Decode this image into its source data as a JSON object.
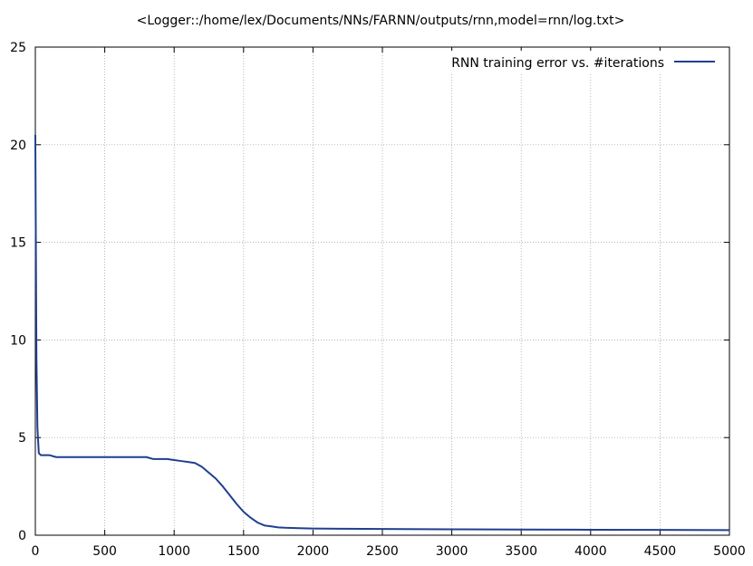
{
  "chart_data": {
    "type": "line",
    "title": "<Logger::/home/lex/Documents/NNs/FARNN/outputs/rnn,model=rnn/log.txt>",
    "xlabel": "",
    "ylabel": "",
    "xlim": [
      0,
      5000
    ],
    "ylim": [
      0,
      25
    ],
    "xticks": [
      0,
      500,
      1000,
      1500,
      2000,
      2500,
      3000,
      3500,
      4000,
      4500,
      5000
    ],
    "yticks": [
      0,
      5,
      10,
      15,
      20,
      25
    ],
    "x_tick_labels": [
      "0",
      "500",
      "1000",
      "1500",
      "2000",
      "2500",
      "3000",
      "3500",
      "4000",
      "4500",
      "5000"
    ],
    "y_tick_labels": [
      "0",
      "5",
      "10",
      "15",
      "20",
      "25"
    ],
    "grid": true,
    "legend_position": "top-right",
    "series": [
      {
        "name": "RNN training error vs. #iterations",
        "color": "#1f3f8f",
        "x": [
          0,
          3,
          8,
          15,
          25,
          40,
          60,
          100,
          150,
          200,
          250,
          300,
          350,
          400,
          450,
          500,
          550,
          600,
          650,
          700,
          750,
          800,
          850,
          900,
          950,
          1000,
          1050,
          1100,
          1150,
          1200,
          1250,
          1300,
          1350,
          1400,
          1450,
          1500,
          1550,
          1600,
          1650,
          1700,
          1750,
          1800,
          1900,
          2000,
          2200,
          2500,
          3000,
          3500,
          4000,
          4500,
          5000
        ],
        "y": [
          20.5,
          16.0,
          9.0,
          5.5,
          4.2,
          4.1,
          4.1,
          4.1,
          4.0,
          4.0,
          4.0,
          4.0,
          4.0,
          4.0,
          4.0,
          4.0,
          4.0,
          4.0,
          4.0,
          4.0,
          4.0,
          4.0,
          3.9,
          3.9,
          3.9,
          3.85,
          3.8,
          3.75,
          3.7,
          3.5,
          3.2,
          2.9,
          2.5,
          2.05,
          1.6,
          1.2,
          0.9,
          0.65,
          0.5,
          0.45,
          0.4,
          0.38,
          0.36,
          0.34,
          0.33,
          0.32,
          0.3,
          0.29,
          0.28,
          0.27,
          0.26
        ]
      }
    ]
  }
}
